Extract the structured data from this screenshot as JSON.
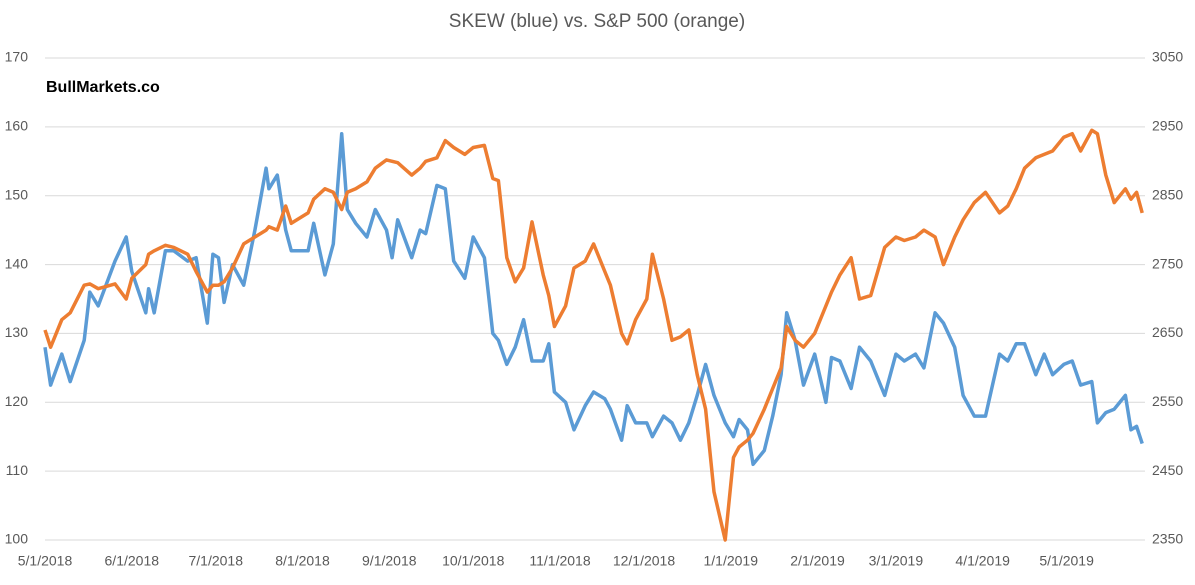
{
  "chart_data": {
    "type": "line",
    "title": "SKEW (blue) vs. S&P 500 (orange)",
    "annotation": "BullMarkets.co",
    "x": [
      "5/1/2018",
      "5/3/2018",
      "5/7/2018",
      "5/10/2018",
      "5/15/2018",
      "5/17/2018",
      "5/20/2018",
      "5/26/2018",
      "5/30/2018",
      "6/1/2018",
      "6/6/2018",
      "6/7/2018",
      "6/9/2018",
      "6/13/2018",
      "6/16/2018",
      "6/21/2018",
      "6/24/2018",
      "6/28/2018",
      "6/30/2018",
      "7/2/2018",
      "7/4/2018",
      "7/7/2018",
      "7/11/2018",
      "7/15/2018",
      "7/19/2018",
      "7/20/2018",
      "7/23/2018",
      "7/26/2018",
      "7/28/2018",
      "8/3/2018",
      "8/5/2018",
      "8/9/2018",
      "8/12/2018",
      "8/15/2018",
      "8/17/2018",
      "8/20/2018",
      "8/24/2018",
      "8/27/2018",
      "8/31/2018",
      "9/2/2018",
      "9/4/2018",
      "9/9/2018",
      "9/12/2018",
      "9/14/2018",
      "9/18/2018",
      "9/21/2018",
      "9/24/2018",
      "9/28/2018",
      "10/1/2018",
      "10/5/2018",
      "10/8/2018",
      "10/10/2018",
      "10/13/2018",
      "10/16/2018",
      "10/19/2018",
      "10/22/2018",
      "10/26/2018",
      "10/28/2018",
      "10/30/2018",
      "11/3/2018",
      "11/6/2018",
      "11/10/2018",
      "11/13/2018",
      "11/17/2018",
      "11/19/2018",
      "11/23/2018",
      "11/25/2018",
      "11/28/2018",
      "12/2/2018",
      "12/4/2018",
      "12/8/2018",
      "12/11/2018",
      "12/14/2018",
      "12/17/2018",
      "12/20/2018",
      "12/23/2018",
      "12/26/2018",
      "12/30/2018",
      "1/2/2019",
      "1/4/2019",
      "1/7/2019",
      "1/9/2019",
      "1/13/2019",
      "1/16/2019",
      "1/19/2019",
      "1/21/2019",
      "1/24/2019",
      "1/27/2019",
      "1/31/2019",
      "2/4/2019",
      "2/6/2019",
      "2/9/2019",
      "2/13/2019",
      "2/16/2019",
      "2/20/2019",
      "2/25/2019",
      "3/1/2019",
      "3/4/2019",
      "3/8/2019",
      "3/11/2019",
      "3/15/2019",
      "3/18/2019",
      "3/22/2019",
      "3/25/2019",
      "3/29/2019",
      "4/2/2019",
      "4/7/2019",
      "4/10/2019",
      "4/13/2019",
      "4/16/2019",
      "4/20/2019",
      "4/23/2019",
      "4/26/2019",
      "4/30/2019",
      "5/3/2019",
      "5/6/2019",
      "5/10/2019",
      "5/12/2019",
      "5/15/2019",
      "5/18/2019",
      "5/22/2019",
      "5/24/2019",
      "5/26/2019",
      "5/28/2019"
    ],
    "series": [
      {
        "name": "SKEW",
        "color": "#5b9bd5",
        "values": [
          128,
          122.5,
          127,
          123,
          129,
          136,
          134,
          140.5,
          144,
          139,
          133,
          136.5,
          133,
          142,
          142,
          140.5,
          141,
          131.5,
          141.5,
          141,
          134.5,
          140,
          137,
          145,
          154,
          151,
          153,
          145,
          142,
          142,
          146,
          138.5,
          143,
          159,
          148,
          146,
          144,
          148,
          145,
          141,
          146.5,
          141,
          145,
          144.5,
          151.5,
          151,
          140.5,
          138,
          144,
          141,
          130,
          129,
          125.5,
          128,
          132,
          126,
          126,
          128.5,
          121.5,
          120,
          116,
          119.5,
          121.5,
          120.5,
          119,
          114.5,
          119.5,
          117,
          117,
          115,
          118,
          117,
          114.5,
          117,
          121,
          125.5,
          121,
          117,
          115,
          117.5,
          116,
          111,
          113,
          118,
          124,
          133,
          129,
          122.5,
          127,
          120,
          126.5,
          126,
          122,
          128,
          126,
          121,
          127,
          126,
          127,
          125,
          133,
          131.5,
          128,
          121,
          118,
          118,
          127,
          126,
          128.5,
          128.5,
          124,
          127,
          124,
          125.5,
          126,
          122.5,
          123,
          117,
          118.5,
          119,
          121,
          116,
          116.5,
          114
        ]
      },
      {
        "name": "S&P 500",
        "color": "#ed7d31",
        "axis": "y2",
        "values": [
          2655,
          2630,
          2670,
          2680,
          2720,
          2722,
          2715,
          2722,
          2700,
          2730,
          2750,
          2765,
          2770,
          2778,
          2775,
          2765,
          2740,
          2710,
          2720,
          2720,
          2725,
          2745,
          2780,
          2790,
          2800,
          2805,
          2800,
          2835,
          2810,
          2825,
          2845,
          2860,
          2855,
          2830,
          2855,
          2860,
          2870,
          2890,
          2902,
          2900,
          2898,
          2880,
          2890,
          2900,
          2905,
          2930,
          2920,
          2910,
          2920,
          2923,
          2875,
          2872,
          2760,
          2725,
          2745,
          2812,
          2735,
          2705,
          2660,
          2690,
          2745,
          2755,
          2780,
          2740,
          2720,
          2650,
          2635,
          2670,
          2700,
          2765,
          2700,
          2640,
          2645,
          2655,
          2590,
          2540,
          2420,
          2350,
          2470,
          2485,
          2495,
          2505,
          2540,
          2570,
          2600,
          2660,
          2640,
          2630,
          2650,
          2690,
          2710,
          2735,
          2760,
          2700,
          2705,
          2775,
          2790,
          2785,
          2790,
          2800,
          2790,
          2750,
          2790,
          2815,
          2840,
          2855,
          2825,
          2835,
          2860,
          2890,
          2905,
          2910,
          2915,
          2935,
          2940,
          2915,
          2945,
          2940,
          2880,
          2840,
          2860,
          2845,
          2855,
          2825
        ]
      }
    ],
    "xlim": [
      "5/1/2018",
      "5/29/2019"
    ],
    "xticks": [
      "5/1/2018",
      "6/1/2018",
      "7/1/2018",
      "8/1/2018",
      "9/1/2018",
      "10/1/2018",
      "11/1/2018",
      "12/1/2018",
      "1/1/2019",
      "2/1/2019",
      "3/1/2019",
      "4/1/2019",
      "5/1/2019"
    ],
    "ylim": [
      100,
      170
    ],
    "yticks": [
      100,
      110,
      120,
      130,
      140,
      150,
      160,
      170
    ],
    "y2lim": [
      2350,
      3050
    ],
    "y2ticks": [
      2350,
      2450,
      2550,
      2650,
      2750,
      2850,
      2950,
      3050
    ],
    "grid": true
  }
}
